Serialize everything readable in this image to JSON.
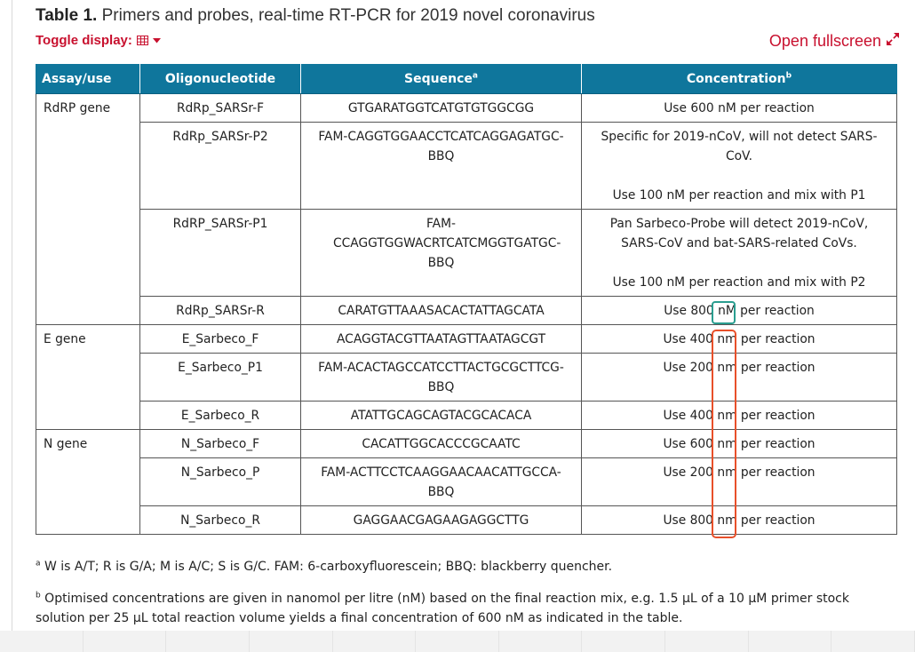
{
  "title": {
    "label": "Table 1.",
    "text": "Primers and probes, real-time RT-PCR for 2019 novel coronavirus"
  },
  "toggle_label": "Toggle display:",
  "fullscreen_label": "Open fullscreen",
  "icons": {
    "toggle": "table-grid-icon",
    "dropdown": "caret-down-icon",
    "fullscreen": "expand-arrows-icon"
  },
  "colors": {
    "header_bg": "#0f769c",
    "link": "#c8102e",
    "teal_box": "#2a9d8f",
    "red_box": "#e8502a"
  },
  "headers": {
    "assay": "Assay/use",
    "oligo": "Oligonucleotide",
    "sequence": "Sequence",
    "sequence_sup": "a",
    "conc": "Concentration",
    "conc_sup": "b"
  },
  "rows": [
    {
      "assay": "RdRP gene",
      "oligo": "RdRp_SARSr-F",
      "seq": "GTGARATGGTCATGTGTGGCGG",
      "conc_pre": "Use 600",
      "conc_unit": "nM",
      "conc_post": "per reaction"
    },
    {
      "assay": "",
      "oligo": "RdRp_SARSr-P2",
      "seq": "FAM-CAGGTGGAACCTCATCAGGAGATGC-BBQ",
      "conc_a": "Specific for 2019-nCoV, will not detect SARS-CoV.",
      "conc_b": "Use 100 nM per reaction and mix with P1"
    },
    {
      "assay": "",
      "oligo": "RdRP_SARSr-P1",
      "seq": "FAM-CCAGGTGGWACRTCATCMGGTGATGC-BBQ",
      "conc_a": "Pan Sarbeco-Probe will detect 2019-nCoV, SARS-CoV and bat-SARS-related CoVs.",
      "conc_b": "Use 100 nM per reaction and mix with P2"
    },
    {
      "assay": "",
      "oligo": "RdRp_SARSr-R",
      "seq": "CARATGTTAAASACACTATTAGCATA",
      "conc_pre": "Use 800",
      "conc_unit": "nM",
      "conc_post": "per reaction"
    },
    {
      "assay": "E gene",
      "oligo": "E_Sarbeco_F",
      "seq": "ACAGGTACGTTAATAGTTAATAGCGT",
      "conc_pre": "Use 400",
      "conc_unit": "nm",
      "conc_post": "per reaction"
    },
    {
      "assay": "",
      "oligo": "E_Sarbeco_P1",
      "seq": "FAM-ACACTAGCCATCCTTACTGCGCTTCG-BBQ",
      "conc_pre": "Use 200",
      "conc_unit": "nm",
      "conc_post": "per reaction"
    },
    {
      "assay": "",
      "oligo": "E_Sarbeco_R",
      "seq": "ATATTGCAGCAGTACGCACACA",
      "conc_pre": "Use 400",
      "conc_unit": "nm",
      "conc_post": "per reaction"
    },
    {
      "assay": "N gene",
      "oligo": "N_Sarbeco_F",
      "seq": "CACATTGGCACCCGCAATC",
      "conc_pre": "Use 600",
      "conc_unit": "nm",
      "conc_post": "per reaction"
    },
    {
      "assay": "",
      "oligo": "N_Sarbeco_P",
      "seq": "FAM-ACTTCCTCAAGGAACAACATTGCCA-BBQ",
      "conc_pre": "Use 200",
      "conc_unit": "nm",
      "conc_post": "per reaction"
    },
    {
      "assay": "",
      "oligo": "N_Sarbeco_R",
      "seq": "GAGGAACGAGAAGAGGCTTG",
      "conc_pre": "Use 800",
      "conc_unit": "nm",
      "conc_post": "per reaction"
    }
  ],
  "footnotes": [
    {
      "mark": "a",
      "text": "W is A/T; R is G/A; M is A/C; S is G/C. FAM: 6-carboxyfluorescein; BBQ: blackberry quencher."
    },
    {
      "mark": "b",
      "text": "Optimised concentrations are given in nanomol per litre (nM) based on the final reaction mix, e.g. 1.5 µL of a 10 µM primer stock solution per 25 µL total reaction volume yields a final concentration of 600 nM as indicated in the table."
    }
  ]
}
